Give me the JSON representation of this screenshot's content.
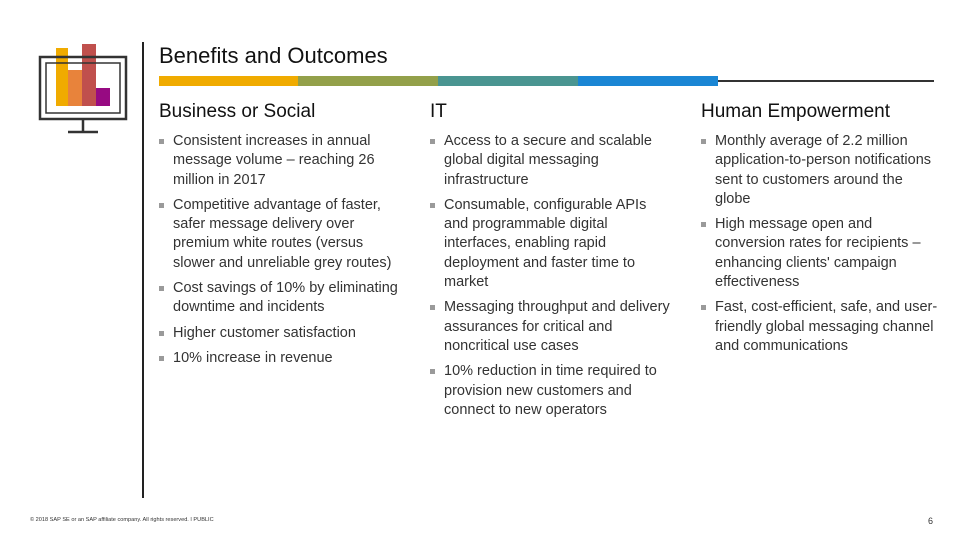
{
  "slide": {
    "title": "Benefits and Outcomes",
    "footer": "© 2018 SAP SE or an SAP affiliate company. All rights reserved. ǀ PUBLIC",
    "page_number": "6"
  },
  "icon": {
    "name": "monitor-bar-chart-icon",
    "bar_colors": [
      "#F0AB00",
      "#E8833B",
      "#C0504D",
      "#970A82"
    ]
  },
  "band": {
    "colors": [
      "#F0AB00",
      "#93A04A",
      "#4A9591",
      "#1A86D4"
    ]
  },
  "columns": [
    {
      "heading": "Business or Social",
      "bullets": [
        "Consistent increases in annual message volume – reaching 26 million in 2017",
        "Competitive advantage of faster, safer message delivery over premium white routes (versus slower and unreliable grey routes)",
        "Cost savings of 10% by eliminating downtime and incidents",
        "Higher customer satisfaction",
        "10% increase in revenue"
      ]
    },
    {
      "heading": "IT",
      "bullets": [
        "Access to a secure and scalable global digital messaging infrastructure",
        "Consumable, configurable APIs and programmable digital interfaces, enabling rapid deployment and faster time to market",
        "Messaging throughput and delivery assurances for critical and noncritical use cases",
        "10% reduction in time required to provision new customers and connect to new operators"
      ]
    },
    {
      "heading": "Human Empowerment",
      "bullets": [
        "Monthly average of 2.2 million application-to-person notifications sent to customers around the globe",
        "High message open and conversion rates for recipients – enhancing clients' campaign effectiveness",
        "Fast, cost-efficient, safe, and user-friendly global messaging channel and communications"
      ]
    }
  ]
}
